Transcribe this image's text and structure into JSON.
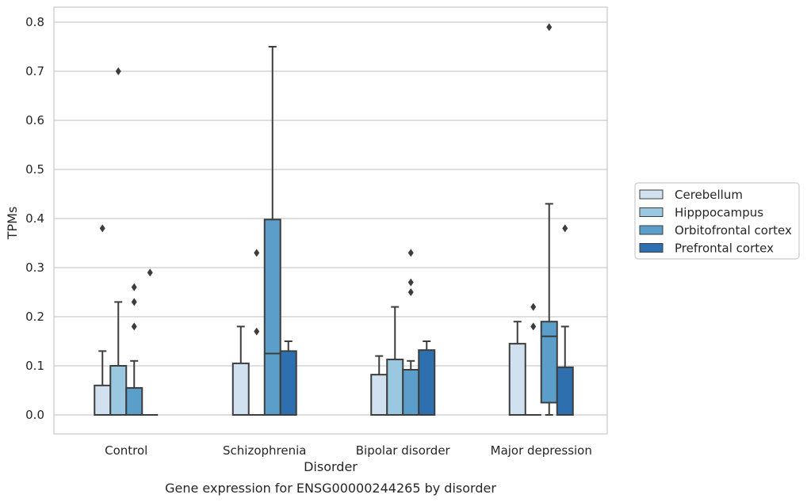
{
  "chart_data": {
    "type": "boxplot",
    "title": "",
    "caption": "Gene expression for ENSG00000244265 by disorder",
    "xlabel": "Disorder",
    "ylabel": "TPMs",
    "ylim": [
      -0.04,
      0.83
    ],
    "yticks": [
      0.0,
      0.1,
      0.2,
      0.3,
      0.4,
      0.5,
      0.6,
      0.7,
      0.8
    ],
    "ytick_labels": [
      "0.0",
      "0.1",
      "0.2",
      "0.3",
      "0.4",
      "0.5",
      "0.6",
      "0.7",
      "0.8"
    ],
    "grid": "horizontal",
    "legend_position": "right, outside plot",
    "categories": [
      "Control",
      "Schizophrenia",
      "Bipolar disorder",
      "Major depression"
    ],
    "series": [
      {
        "name": "Cerebellum",
        "color": "#d1e1f0",
        "boxes": [
          {
            "whislo": 0.0,
            "q1": 0.0,
            "med": 0.0,
            "q3": 0.06,
            "whishi": 0.13,
            "fliers": [
              0.38
            ]
          },
          {
            "whislo": 0.0,
            "q1": 0.0,
            "med": 0.0,
            "q3": 0.105,
            "whishi": 0.18,
            "fliers": []
          },
          {
            "whislo": 0.0,
            "q1": 0.0,
            "med": 0.0,
            "q3": 0.082,
            "whishi": 0.12,
            "fliers": []
          },
          {
            "whislo": 0.0,
            "q1": 0.0,
            "med": 0.0,
            "q3": 0.145,
            "whishi": 0.19,
            "fliers": []
          }
        ]
      },
      {
        "name": "Hipppocampus",
        "color": "#9ac8e0",
        "boxes": [
          {
            "whislo": 0.0,
            "q1": 0.0,
            "med": 0.0,
            "q3": 0.1,
            "whishi": 0.23,
            "fliers": [
              0.7
            ]
          },
          {
            "whislo": 0.0,
            "q1": 0.0,
            "med": 0.0,
            "q3": 0.0,
            "whishi": 0.0,
            "fliers": [
              0.33,
              0.17
            ]
          },
          {
            "whislo": 0.0,
            "q1": 0.0,
            "med": 0.0,
            "q3": 0.113,
            "whishi": 0.22,
            "fliers": []
          },
          {
            "whislo": 0.0,
            "q1": 0.0,
            "med": 0.0,
            "q3": 0.0,
            "whishi": 0.0,
            "fliers": [
              0.22,
              0.18
            ]
          }
        ]
      },
      {
        "name": "Orbitofrontal cortex",
        "color": "#5b9ec9",
        "boxes": [
          {
            "whislo": 0.0,
            "q1": 0.0,
            "med": 0.0,
            "q3": 0.055,
            "whishi": 0.11,
            "fliers": [
              0.26,
              0.23,
              0.18
            ]
          },
          {
            "whislo": 0.0,
            "q1": 0.0,
            "med": 0.125,
            "q3": 0.398,
            "whishi": 0.75,
            "fliers": []
          },
          {
            "whislo": 0.0,
            "q1": 0.0,
            "med": 0.0,
            "q3": 0.092,
            "whishi": 0.11,
            "fliers": [
              0.33,
              0.27,
              0.25
            ]
          },
          {
            "whislo": 0.0,
            "q1": 0.025,
            "med": 0.16,
            "q3": 0.19,
            "whishi": 0.43,
            "fliers": [
              0.79
            ]
          }
        ]
      },
      {
        "name": "Prefrontal cortex",
        "color": "#2d6faf",
        "boxes": [
          {
            "whislo": 0.0,
            "q1": 0.0,
            "med": 0.0,
            "q3": 0.0,
            "whishi": 0.0,
            "fliers": [
              0.29
            ]
          },
          {
            "whislo": 0.0,
            "q1": 0.0,
            "med": 0.0,
            "q3": 0.13,
            "whishi": 0.15,
            "fliers": []
          },
          {
            "whislo": 0.0,
            "q1": 0.0,
            "med": 0.0,
            "q3": 0.132,
            "whishi": 0.15,
            "fliers": []
          },
          {
            "whislo": 0.0,
            "q1": 0.0,
            "med": 0.0,
            "q3": 0.097,
            "whishi": 0.18,
            "fliers": [
              0.38
            ]
          }
        ]
      }
    ]
  }
}
